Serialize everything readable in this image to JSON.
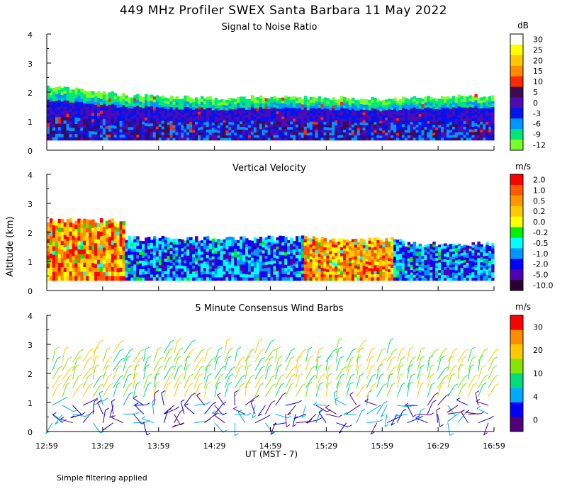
{
  "figure": {
    "title": "449 MHz Profiler SWEX Santa Barbara 11 May 2022",
    "footer_note": "Simple filtering applied",
    "y_axis_label": "Altitude (km)",
    "x_axis_label": "UT  (MST - 7)"
  },
  "chart_data": [
    {
      "type": "heatmap",
      "title": "Signal to Noise Ratio",
      "colorbar_unit": "dB",
      "colorbar_labels": [
        "30",
        "25",
        "20",
        "15",
        "10",
        "5",
        "0",
        "-3",
        "-6",
        "-9",
        "-12"
      ],
      "colorbar_colors": [
        "#ffffff",
        "#ffff00",
        "#ffc800",
        "#ff8c00",
        "#ff2800",
        "#3c0a50",
        "#500ab4",
        "#0014f0",
        "#0096ff",
        "#00e678",
        "#78ff28"
      ],
      "x_ticks": [
        "12:59",
        "13:29",
        "13:59",
        "14:29",
        "14:59",
        "15:29",
        "15:59",
        "16:29",
        "16:59"
      ],
      "ylim": [
        0,
        4
      ],
      "y_ticks": [
        "0",
        "1",
        "2",
        "3",
        "4"
      ],
      "data_top_km": [
        2.2,
        2.1,
        1.9,
        1.85,
        1.8,
        1.8,
        1.85,
        1.8,
        1.8,
        1.75,
        1.8,
        1.85,
        1.9
      ]
    },
    {
      "type": "heatmap",
      "title": "Vertical Velocity",
      "colorbar_unit": "m/s",
      "colorbar_labels": [
        "2.0",
        "1.0",
        "0.5",
        "0.2",
        "0.0",
        "-0.2",
        "-0.5",
        "-1.0",
        "-2.0",
        "-5.0",
        "-10.0"
      ],
      "colorbar_colors": [
        "#ff0000",
        "#ff5a00",
        "#ff9600",
        "#ffc800",
        "#ffff00",
        "#00f000",
        "#00ffff",
        "#0096ff",
        "#0000ff",
        "#5000b4",
        "#2d0032"
      ],
      "x_ticks": [
        "12:59",
        "13:29",
        "13:59",
        "14:29",
        "14:59",
        "15:29",
        "15:59",
        "16:29",
        "16:59"
      ],
      "ylim": [
        0,
        4
      ],
      "y_ticks": [
        "0",
        "1",
        "2",
        "3",
        "4"
      ]
    },
    {
      "type": "scatter",
      "title": "5 Minute Consensus Wind Barbs",
      "colorbar_unit": "m/s",
      "colorbar_labels": [
        "30",
        "20",
        "10",
        "4",
        "0"
      ],
      "colorbar_colors": [
        "#ff0000",
        "#ff8c00",
        "#ffc800",
        "#82e600",
        "#00dc78",
        "#00aaff",
        "#0000ff",
        "#500078"
      ],
      "x_ticks": [
        "12:59",
        "13:29",
        "13:59",
        "14:29",
        "14:59",
        "15:29",
        "15:59",
        "16:29",
        "16:59"
      ],
      "ylim": [
        0,
        4
      ],
      "y_ticks": [
        "0",
        "1",
        "2",
        "3",
        "4"
      ]
    }
  ]
}
